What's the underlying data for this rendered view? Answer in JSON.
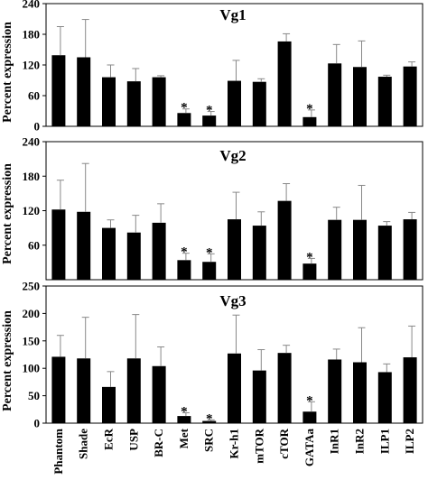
{
  "chart_data": {
    "type": "bar",
    "categories": [
      "Phantom",
      "Shade",
      "EcR",
      "USP",
      "BR-C",
      "Met",
      "SRC",
      "Kr-h1",
      "mTOR",
      "cTOR",
      "GATAa",
      "InR1",
      "InR2",
      "ILP1",
      "ILP2"
    ],
    "ylabel": "Percent expression",
    "panels": [
      {
        "title": "Vg1",
        "ylim": [
          0,
          240
        ],
        "yticks": [
          0,
          60,
          120,
          180,
          240
        ],
        "values": [
          139,
          135,
          96,
          88,
          96,
          26,
          21,
          89,
          87,
          166,
          18,
          123,
          116,
          97,
          117
        ],
        "errors": [
          56,
          74,
          24,
          25,
          3,
          8,
          8,
          40,
          6,
          15,
          14,
          37,
          51,
          3,
          9
        ],
        "significant": [
          "Met",
          "SRC",
          "GATAa"
        ]
      },
      {
        "title": "Vg2",
        "ylim": [
          0,
          240
        ],
        "yticks": [
          60,
          120,
          180,
          240
        ],
        "values": [
          122,
          118,
          90,
          82,
          99,
          34,
          31,
          105,
          94,
          137,
          28,
          104,
          104,
          94,
          105
        ],
        "errors": [
          51,
          84,
          14,
          30,
          33,
          12,
          14,
          47,
          24,
          30,
          9,
          22,
          60,
          7,
          12
        ],
        "significant": [
          "Met",
          "SRC",
          "GATAa"
        ]
      },
      {
        "title": "Vg3",
        "ylim": [
          0,
          250
        ],
        "yticks": [
          0,
          50,
          100,
          150,
          200,
          250
        ],
        "values": [
          121,
          118,
          66,
          118,
          104,
          13,
          4,
          127,
          96,
          128,
          21,
          116,
          111,
          93,
          120
        ],
        "errors": [
          39,
          75,
          28,
          80,
          35,
          6,
          2,
          70,
          38,
          14,
          18,
          19,
          63,
          15,
          57
        ],
        "significant": [
          "Met",
          "SRC",
          "GATAa"
        ]
      }
    ],
    "legend": "none",
    "annotations": [
      "*"
    ]
  }
}
